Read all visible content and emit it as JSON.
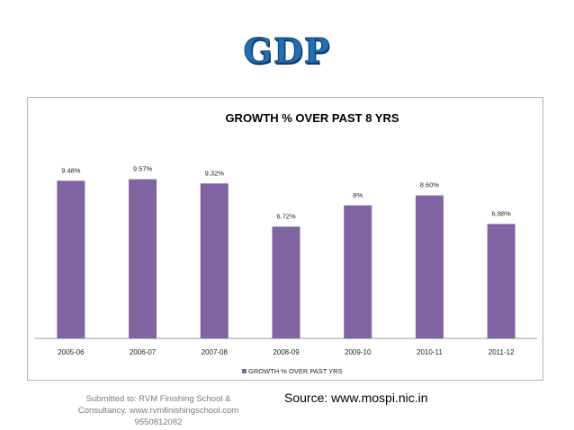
{
  "slide": {
    "title": "GDP",
    "submitted_line1": "Submitted to: RVM Finishing School &",
    "submitted_line2": "Consultancy. www.rvmfinishingschool.com",
    "submitted_line3": "9550812082",
    "source": "Source: www.mospi.nic.in",
    "title_color": "#1f6fb5"
  },
  "chart_data": {
    "type": "bar",
    "title": "GROWTH % OVER PAST 8 YRS",
    "categories": [
      "2005-06",
      "2006-07",
      "2007-08",
      "2008-09",
      "2009-10",
      "2010-11",
      "2011-12"
    ],
    "series": [
      {
        "name": "GROWTH % OVER PAST YRS",
        "values": [
          9.48,
          9.57,
          9.32,
          6.72,
          8,
          8.6,
          6.88
        ],
        "labels": [
          "9.48%",
          "9.57%",
          "9.32%",
          "6.72%",
          "8%",
          "8.60%",
          "6.88%"
        ],
        "color": "#8064a2"
      }
    ],
    "xlabel": "",
    "ylabel": "",
    "ylim": [
      0,
      10.2
    ],
    "grid": false,
    "legend": "bottom"
  }
}
